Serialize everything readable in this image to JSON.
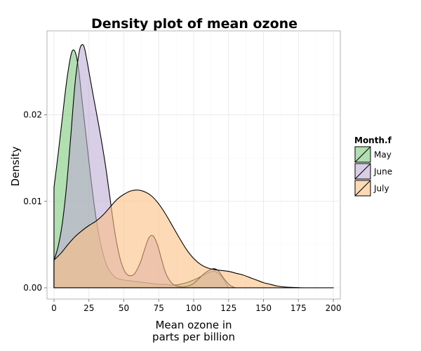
{
  "chart_data": {
    "type": "area",
    "title": "Density plot of mean ozone",
    "xlabel_lines": [
      "Mean ozone in",
      "parts per billion"
    ],
    "ylabel": "Density",
    "xlim": [
      -5,
      205
    ],
    "ylim": [
      -0.0013,
      0.0297
    ],
    "x_ticks": [
      0,
      25,
      50,
      75,
      100,
      125,
      150,
      175,
      200
    ],
    "x_tick_labels": [
      "0",
      "25",
      "50",
      "75",
      "100",
      "125",
      "150",
      "175",
      "200"
    ],
    "y_ticks": [
      0.0,
      0.01,
      0.02
    ],
    "y_tick_labels": [
      "0.00",
      "0.01",
      "0.02"
    ],
    "grid": true,
    "legend": {
      "title": "Month.f",
      "position": "right"
    },
    "series": [
      {
        "name": "May",
        "fill": "#7fc97f",
        "x": [
          0,
          3,
          6,
          9,
          12,
          14,
          16,
          18,
          20,
          23,
          26,
          29,
          32,
          35,
          38,
          41,
          44,
          47,
          50,
          55,
          60,
          65,
          70,
          75,
          80,
          85,
          90,
          95,
          100,
          105,
          110,
          115,
          120,
          125
        ],
        "y": [
          0.0116,
          0.0155,
          0.0197,
          0.0238,
          0.0268,
          0.0275,
          0.0268,
          0.0248,
          0.0218,
          0.0175,
          0.0132,
          0.0093,
          0.0062,
          0.004,
          0.0025,
          0.0017,
          0.0012,
          0.001,
          0.0009,
          0.0008,
          0.0007,
          0.0006,
          0.0005,
          0.0004,
          0.0004,
          0.0003,
          0.0004,
          0.0006,
          0.0009,
          0.0013,
          0.0017,
          0.0019,
          0.0013,
          0.0
        ]
      },
      {
        "name": "June",
        "fill": "#beaed4",
        "x": [
          0,
          3,
          6,
          9,
          12,
          15,
          18,
          20,
          22,
          25,
          28,
          31,
          34,
          37,
          40,
          43,
          46,
          49,
          52,
          55,
          58,
          62,
          65,
          68,
          71,
          74,
          77,
          80,
          84,
          88,
          92,
          96,
          100,
          104,
          108,
          112,
          115,
          118,
          122,
          126,
          130
        ],
        "y": [
          0.0032,
          0.0048,
          0.0075,
          0.0118,
          0.0175,
          0.0235,
          0.0272,
          0.0281,
          0.0276,
          0.025,
          0.0223,
          0.0197,
          0.017,
          0.014,
          0.0105,
          0.007,
          0.0043,
          0.0025,
          0.0016,
          0.0014,
          0.0017,
          0.003,
          0.0045,
          0.0058,
          0.006,
          0.005,
          0.0033,
          0.0017,
          0.0006,
          0.0002,
          0.0001,
          0.0002,
          0.0005,
          0.0011,
          0.0017,
          0.0021,
          0.0022,
          0.0019,
          0.001,
          0.0003,
          0.0
        ]
      },
      {
        "name": "July",
        "fill": "#fdc086",
        "x": [
          0,
          5,
          10,
          15,
          20,
          25,
          30,
          35,
          40,
          45,
          50,
          55,
          60,
          65,
          70,
          75,
          80,
          85,
          90,
          95,
          100,
          105,
          110,
          115,
          120,
          125,
          130,
          135,
          140,
          145,
          150,
          155,
          160,
          165,
          170,
          175,
          180,
          190,
          200
        ],
        "y": [
          0.0032,
          0.004,
          0.005,
          0.0059,
          0.0066,
          0.0072,
          0.0077,
          0.0084,
          0.0093,
          0.0102,
          0.0108,
          0.0112,
          0.0113,
          0.0111,
          0.0106,
          0.0097,
          0.0085,
          0.0071,
          0.0057,
          0.0044,
          0.0034,
          0.0027,
          0.0023,
          0.0021,
          0.002,
          0.0019,
          0.0017,
          0.0015,
          0.0012,
          0.0009,
          0.0006,
          0.0004,
          0.0002,
          0.0001,
          5e-05,
          2e-05,
          0.0,
          0.0,
          0.0
        ]
      }
    ]
  }
}
